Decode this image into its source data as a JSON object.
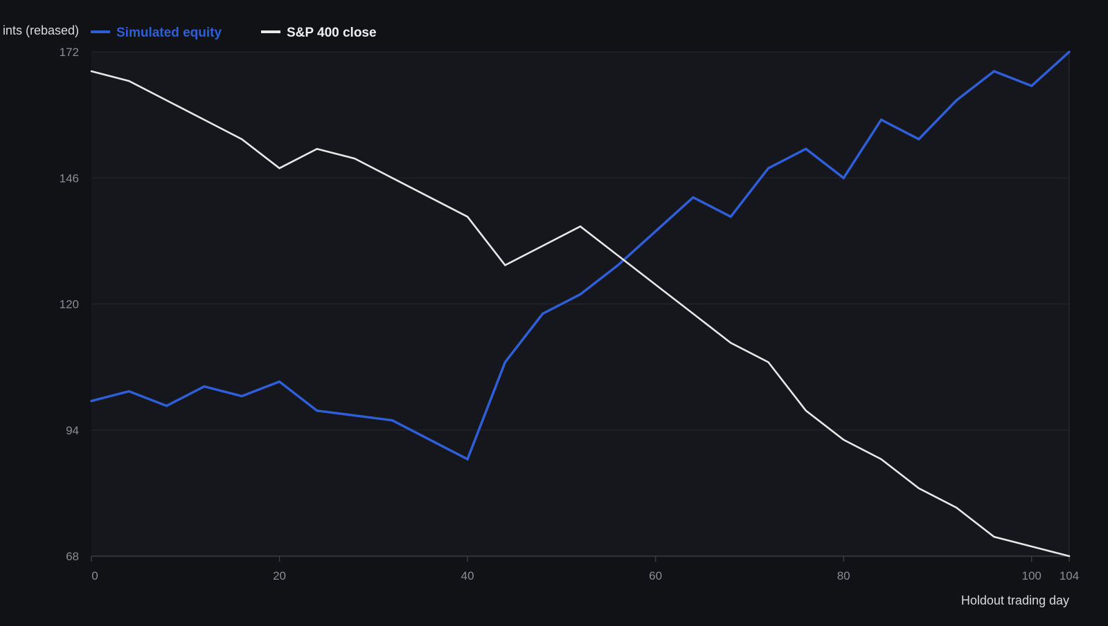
{
  "chart_data": {
    "type": "line",
    "title": "",
    "ylabel": "ints (rebased)",
    "xlabel": "Holdout trading day",
    "xlim": [
      0,
      104
    ],
    "ylim": [
      68,
      172
    ],
    "x_ticks": [
      0,
      20,
      40,
      60,
      80,
      100,
      104
    ],
    "y_ticks": [
      68,
      94,
      120,
      146,
      172
    ],
    "grid": "horizontal",
    "legend_position": "top-left",
    "series": [
      {
        "name": "Simulated equity",
        "color": "#2f5fd8",
        "x": [
          0,
          4,
          8,
          12,
          16,
          20,
          24,
          28,
          32,
          36,
          40,
          44,
          48,
          52,
          56,
          60,
          64,
          68,
          72,
          76,
          80,
          84,
          88,
          92,
          96,
          100,
          104
        ],
        "y": [
          100,
          102,
          99,
          103,
          101,
          104,
          98,
          97,
          96,
          92,
          88,
          108,
          118,
          122,
          128,
          135,
          142,
          138,
          148,
          152,
          146,
          158,
          154,
          162,
          168,
          165,
          172
        ]
      },
      {
        "name": "S&P 400 close",
        "color": "#e8e8e8",
        "x": [
          0,
          4,
          8,
          12,
          16,
          20,
          24,
          28,
          32,
          36,
          40,
          44,
          48,
          52,
          56,
          60,
          64,
          68,
          72,
          76,
          80,
          84,
          88,
          92,
          96,
          100,
          104
        ],
        "y": [
          168,
          166,
          162,
          158,
          154,
          148,
          152,
          150,
          146,
          142,
          138,
          128,
          132,
          136,
          130,
          124,
          118,
          112,
          108,
          98,
          92,
          88,
          82,
          78,
          72,
          70,
          68
        ]
      }
    ]
  }
}
